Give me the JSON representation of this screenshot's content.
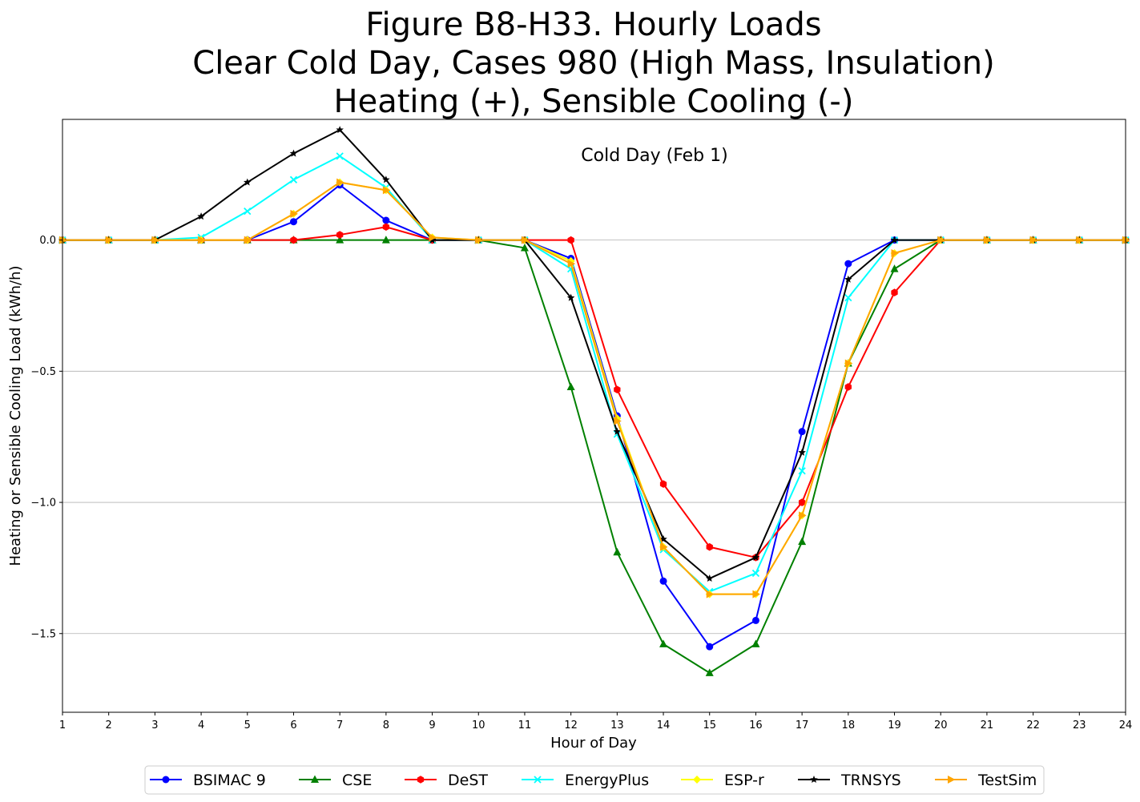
{
  "chart_data": {
    "type": "line",
    "title_lines": [
      "Figure B8-H33. Hourly Loads",
      "Clear Cold Day, Cases 980 (High Mass, Insulation)",
      "Heating (+), Sensible Cooling (-)"
    ],
    "xlabel": "Hour of Day",
    "ylabel": "Heating or Sensible Cooling Load (kWh/h)",
    "annotation": "Cold Day (Feb 1)",
    "x": [
      1,
      2,
      3,
      4,
      5,
      6,
      7,
      8,
      9,
      10,
      11,
      12,
      13,
      14,
      15,
      16,
      17,
      18,
      19,
      20,
      21,
      22,
      23,
      24
    ],
    "x_tick_labels": [
      "1",
      "2",
      "3",
      "4",
      "5",
      "6",
      "7",
      "8",
      "9",
      "10",
      "11",
      "12",
      "13",
      "14",
      "15",
      "16",
      "17",
      "18",
      "19",
      "20",
      "21",
      "22",
      "23",
      "24"
    ],
    "xlim": [
      1,
      24
    ],
    "ylim": [
      -1.8,
      0.46
    ],
    "y_ticks": [
      0.0,
      -0.5,
      -1.0,
      -1.5
    ],
    "y_tick_labels": [
      "0.0",
      "−0.5",
      "−1.0",
      "−1.5"
    ],
    "grid": "horizontal",
    "legend_position": "bottom-center",
    "series": [
      {
        "name": "BSIMAC 9",
        "color": "#0000ff",
        "marker": "circle",
        "values": [
          0,
          0,
          0,
          0,
          0,
          0.07,
          0.21,
          0.075,
          0,
          0,
          0,
          -0.07,
          -0.67,
          -1.3,
          -1.55,
          -1.45,
          -0.73,
          -0.09,
          0,
          0,
          0,
          0,
          0,
          0
        ]
      },
      {
        "name": "CSE",
        "color": "#008000",
        "marker": "triangle",
        "values": [
          0,
          0,
          0,
          0,
          0,
          0,
          0,
          0,
          0,
          0,
          -0.03,
          -0.56,
          -1.19,
          -1.54,
          -1.65,
          -1.54,
          -1.15,
          -0.47,
          -0.11,
          0,
          0,
          0,
          0,
          0
        ]
      },
      {
        "name": "DeST",
        "color": "#ff0000",
        "marker": "hexagon",
        "values": [
          0,
          0,
          0,
          0,
          0,
          0,
          0.02,
          0.05,
          0,
          0,
          0,
          0,
          -0.57,
          -0.93,
          -1.17,
          -1.21,
          -1.0,
          -0.56,
          -0.2,
          0,
          0,
          0,
          0,
          0
        ]
      },
      {
        "name": "EnergyPlus",
        "color": "#00ffff",
        "marker": "x",
        "values": [
          0,
          0,
          0,
          0.01,
          0.11,
          0.23,
          0.32,
          0.2,
          0,
          0,
          0,
          -0.11,
          -0.74,
          -1.18,
          -1.34,
          -1.27,
          -0.88,
          -0.22,
          0,
          0,
          0,
          0,
          0,
          0
        ]
      },
      {
        "name": "ESP-r",
        "color": "#ffff00",
        "marker": "diamond",
        "values": [
          0,
          0,
          0,
          0,
          0,
          0.1,
          0.22,
          0.19,
          0.01,
          0,
          0,
          -0.08,
          -0.68,
          -1.17,
          -1.35,
          -1.35,
          -1.05,
          -0.47,
          -0.05,
          0,
          0,
          0,
          0,
          0
        ]
      },
      {
        "name": "TRNSYS",
        "color": "#000000",
        "marker": "star",
        "values": [
          0,
          0,
          0,
          0.09,
          0.22,
          0.33,
          0.42,
          0.23,
          0,
          0,
          0,
          -0.22,
          -0.73,
          -1.14,
          -1.29,
          -1.21,
          -0.81,
          -0.15,
          0,
          0,
          0,
          0,
          0,
          0
        ]
      },
      {
        "name": "TestSim",
        "color": "#ffa500",
        "marker": "triangle-right",
        "values": [
          0,
          0,
          0,
          0,
          0,
          0.1,
          0.22,
          0.19,
          0.01,
          0,
          0,
          -0.09,
          -0.69,
          -1.17,
          -1.35,
          -1.35,
          -1.05,
          -0.47,
          -0.05,
          0,
          0,
          0,
          0,
          0
        ]
      }
    ]
  }
}
